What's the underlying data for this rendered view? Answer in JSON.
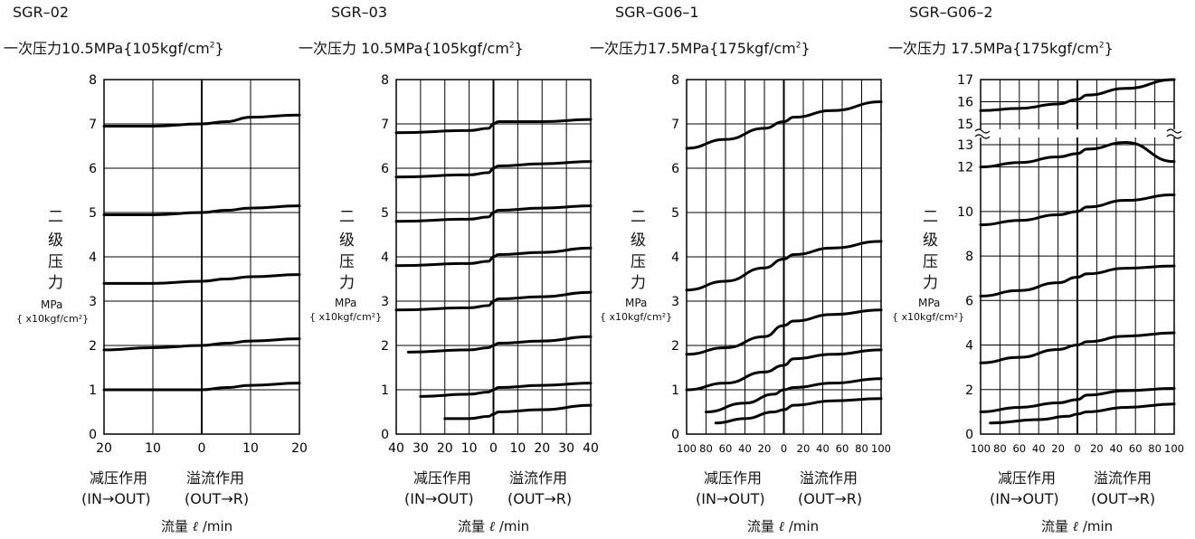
{
  "charts": [
    {
      "title": "SGR–02",
      "pressure_prefix": "一次压力",
      "pressure_value": "10.5MPa",
      "pressure_unit": "{105kgf/cm",
      "pressure_sup": "2",
      "pressure_close": "}"
    },
    {
      "title": "SGR–03",
      "pressure_prefix": "一次压力",
      "pressure_value": "10.5MPa",
      "pressure_unit": "{105kgf/cm",
      "pressure_sup": "2",
      "pressure_close": "}"
    },
    {
      "title": "SGR–G06–1",
      "pressure_prefix": "一次压力",
      "pressure_value": "17.5MPa",
      "pressure_unit": "{175kgf/cm",
      "pressure_sup": "2",
      "pressure_close": "}"
    },
    {
      "title": "SGR–G06–2",
      "pressure_prefix": "一次压力",
      "pressure_value": "17.5MPa",
      "pressure_unit": "{175kgf/cm",
      "pressure_sup": "2",
      "pressure_close": "}"
    }
  ],
  "ylabel_chars": [
    "二",
    "级",
    "压",
    "力"
  ],
  "ylabel_unit": "MPa",
  "ylabel_unit2": "{ x10kgf/cm²}",
  "xlabel_left": "减压作用",
  "xlabel_right": "溢流作用",
  "xlabel_left_sub": "(IN→OUT)",
  "xlabel_right_sub": "(OUT→R)",
  "flow_label": "流量",
  "flow_ell": "ℓ",
  "flow_unit": "/min",
  "chart_data": [
    {
      "type": "line",
      "title": "SGR–02",
      "xlabel": "流量 ℓ /min",
      "ylabel": "二级压力 MPa { x10kgf/cm²}",
      "x_ticks": [
        "20",
        "10",
        "0",
        "10",
        "20"
      ],
      "y_ticks": [
        "0",
        "1",
        "2",
        "3",
        "4",
        "5",
        "6",
        "7",
        "8"
      ],
      "ylim": [
        0,
        8
      ],
      "xlim": [
        -20,
        20
      ],
      "grid": true,
      "series": [
        {
          "x": [
            -20,
            -10,
            0,
            5,
            10,
            20
          ],
          "y": [
            1.0,
            1.0,
            1.0,
            1.05,
            1.1,
            1.15
          ]
        },
        {
          "x": [
            -20,
            -10,
            0,
            5,
            10,
            20
          ],
          "y": [
            1.9,
            1.95,
            2.0,
            2.05,
            2.1,
            2.15
          ]
        },
        {
          "x": [
            -20,
            -10,
            0,
            5,
            10,
            20
          ],
          "y": [
            3.4,
            3.4,
            3.45,
            3.5,
            3.55,
            3.6
          ]
        },
        {
          "x": [
            -20,
            -10,
            0,
            5,
            10,
            20
          ],
          "y": [
            4.95,
            4.95,
            5.0,
            5.05,
            5.1,
            5.15
          ]
        },
        {
          "x": [
            -20,
            -10,
            0,
            5,
            10,
            20
          ],
          "y": [
            6.95,
            6.95,
            7.0,
            7.05,
            7.15,
            7.2
          ]
        }
      ]
    },
    {
      "type": "line",
      "title": "SGR–03",
      "xlabel": "流量 ℓ /min",
      "ylabel": "二级压力 MPa { x10kgf/cm²}",
      "x_ticks": [
        "40",
        "30",
        "20",
        "10",
        "0",
        "10",
        "20",
        "30",
        "40"
      ],
      "y_ticks": [
        "0",
        "1",
        "2",
        "3",
        "4",
        "5",
        "6",
        "7",
        "8"
      ],
      "ylim": [
        0,
        8
      ],
      "xlim": [
        -40,
        40
      ],
      "grid": true,
      "series": [
        {
          "x": [
            -20,
            -10,
            -2,
            0,
            2,
            20,
            40
          ],
          "y": [
            0.35,
            0.35,
            0.4,
            0.45,
            0.5,
            0.55,
            0.65
          ]
        },
        {
          "x": [
            -30,
            -10,
            -2,
            0,
            2,
            20,
            40
          ],
          "y": [
            0.85,
            0.9,
            0.95,
            1.0,
            1.05,
            1.1,
            1.15
          ]
        },
        {
          "x": [
            -35,
            -10,
            -2,
            0,
            2,
            20,
            40
          ],
          "y": [
            1.85,
            1.9,
            1.95,
            2.0,
            2.05,
            2.1,
            2.2
          ]
        },
        {
          "x": [
            -40,
            -10,
            -2,
            0,
            2,
            20,
            40
          ],
          "y": [
            2.8,
            2.85,
            2.9,
            3.0,
            3.05,
            3.1,
            3.2
          ]
        },
        {
          "x": [
            -40,
            -10,
            -2,
            0,
            2,
            20,
            40
          ],
          "y": [
            3.8,
            3.85,
            3.9,
            4.0,
            4.05,
            4.1,
            4.2
          ]
        },
        {
          "x": [
            -40,
            -10,
            -2,
            0,
            2,
            20,
            40
          ],
          "y": [
            4.8,
            4.85,
            4.9,
            5.0,
            5.05,
            5.1,
            5.15
          ]
        },
        {
          "x": [
            -40,
            -10,
            -2,
            0,
            2,
            20,
            40
          ],
          "y": [
            5.8,
            5.85,
            5.9,
            6.0,
            6.05,
            6.1,
            6.15
          ]
        },
        {
          "x": [
            -40,
            -10,
            -2,
            0,
            2,
            20,
            40
          ],
          "y": [
            6.8,
            6.85,
            6.9,
            7.0,
            7.05,
            7.05,
            7.1
          ]
        }
      ]
    },
    {
      "type": "line",
      "title": "SGR–G06–1",
      "xlabel": "流量 ℓ /min",
      "ylabel": "二级压力 MPa { x10kgf/cm²}",
      "x_ticks": [
        "100",
        "80",
        "60",
        "40",
        "20",
        "0",
        "20",
        "40",
        "60",
        "80",
        "100"
      ],
      "y_ticks": [
        "0",
        "1",
        "2",
        "3",
        "4",
        "5",
        "6",
        "7",
        "8"
      ],
      "ylim": [
        0,
        8
      ],
      "xlim": [
        -100,
        100
      ],
      "grid": true,
      "series": [
        {
          "x": [
            -70,
            -40,
            -10,
            0,
            10,
            50,
            100
          ],
          "y": [
            0.25,
            0.35,
            0.5,
            0.55,
            0.65,
            0.75,
            0.8
          ]
        },
        {
          "x": [
            -80,
            -40,
            -10,
            0,
            10,
            50,
            100
          ],
          "y": [
            0.5,
            0.7,
            0.9,
            1.0,
            1.05,
            1.15,
            1.25
          ]
        },
        {
          "x": [
            -100,
            -60,
            -20,
            0,
            10,
            50,
            100
          ],
          "y": [
            1.0,
            1.15,
            1.4,
            1.55,
            1.7,
            1.8,
            1.9
          ]
        },
        {
          "x": [
            -100,
            -60,
            -20,
            0,
            10,
            50,
            100
          ],
          "y": [
            1.8,
            1.95,
            2.2,
            2.45,
            2.55,
            2.7,
            2.8
          ]
        },
        {
          "x": [
            -100,
            -60,
            -20,
            0,
            10,
            50,
            100
          ],
          "y": [
            3.25,
            3.45,
            3.75,
            3.95,
            4.05,
            4.2,
            4.35
          ]
        },
        {
          "x": [
            -100,
            -60,
            -20,
            0,
            10,
            50,
            100
          ],
          "y": [
            6.45,
            6.65,
            6.9,
            7.05,
            7.15,
            7.3,
            7.5
          ]
        }
      ]
    },
    {
      "type": "line",
      "title": "SGR–G06–2",
      "xlabel": "流量 ℓ /min",
      "ylabel": "二级压力 MPa { x10kgf/cm²}",
      "x_ticks": [
        "100",
        "80",
        "60",
        "40",
        "20",
        "0",
        "20",
        "40",
        "60",
        "80",
        "100"
      ],
      "y_ticks": [
        "0",
        "2",
        "4",
        "6",
        "8",
        "10",
        "12",
        "13",
        "15",
        "16",
        "17"
      ],
      "ylim": [
        0,
        17
      ],
      "xlim": [
        -100,
        100
      ],
      "axis_break": [
        13,
        15
      ],
      "grid": true,
      "series": [
        {
          "x": [
            -90,
            -40,
            -10,
            0,
            10,
            50,
            100
          ],
          "y": [
            0.5,
            0.65,
            0.8,
            0.9,
            1.0,
            1.2,
            1.35
          ]
        },
        {
          "x": [
            -100,
            -60,
            -20,
            0,
            10,
            50,
            100
          ],
          "y": [
            1.0,
            1.2,
            1.4,
            1.55,
            1.75,
            1.95,
            2.05
          ]
        },
        {
          "x": [
            -100,
            -60,
            -20,
            0,
            10,
            50,
            100
          ],
          "y": [
            3.2,
            3.45,
            3.8,
            4.0,
            4.15,
            4.4,
            4.55
          ]
        },
        {
          "x": [
            -100,
            -60,
            -20,
            0,
            10,
            50,
            100
          ],
          "y": [
            6.2,
            6.45,
            6.8,
            7.05,
            7.2,
            7.45,
            7.55
          ]
        },
        {
          "x": [
            -100,
            -60,
            -20,
            0,
            10,
            50,
            100
          ],
          "y": [
            9.4,
            9.6,
            9.85,
            10.0,
            10.2,
            10.5,
            10.75
          ]
        },
        {
          "x": [
            -100,
            -60,
            -20,
            0,
            10,
            50,
            100
          ],
          "y": [
            12.0,
            12.2,
            12.45,
            12.6,
            12.8,
            13.1,
            13.3
          ]
        },
        {
          "x": [
            -100,
            -60,
            -20,
            0,
            10,
            50,
            100
          ],
          "y": [
            15.6,
            15.7,
            15.9,
            16.1,
            16.3,
            16.6,
            17.0
          ]
        }
      ]
    }
  ]
}
